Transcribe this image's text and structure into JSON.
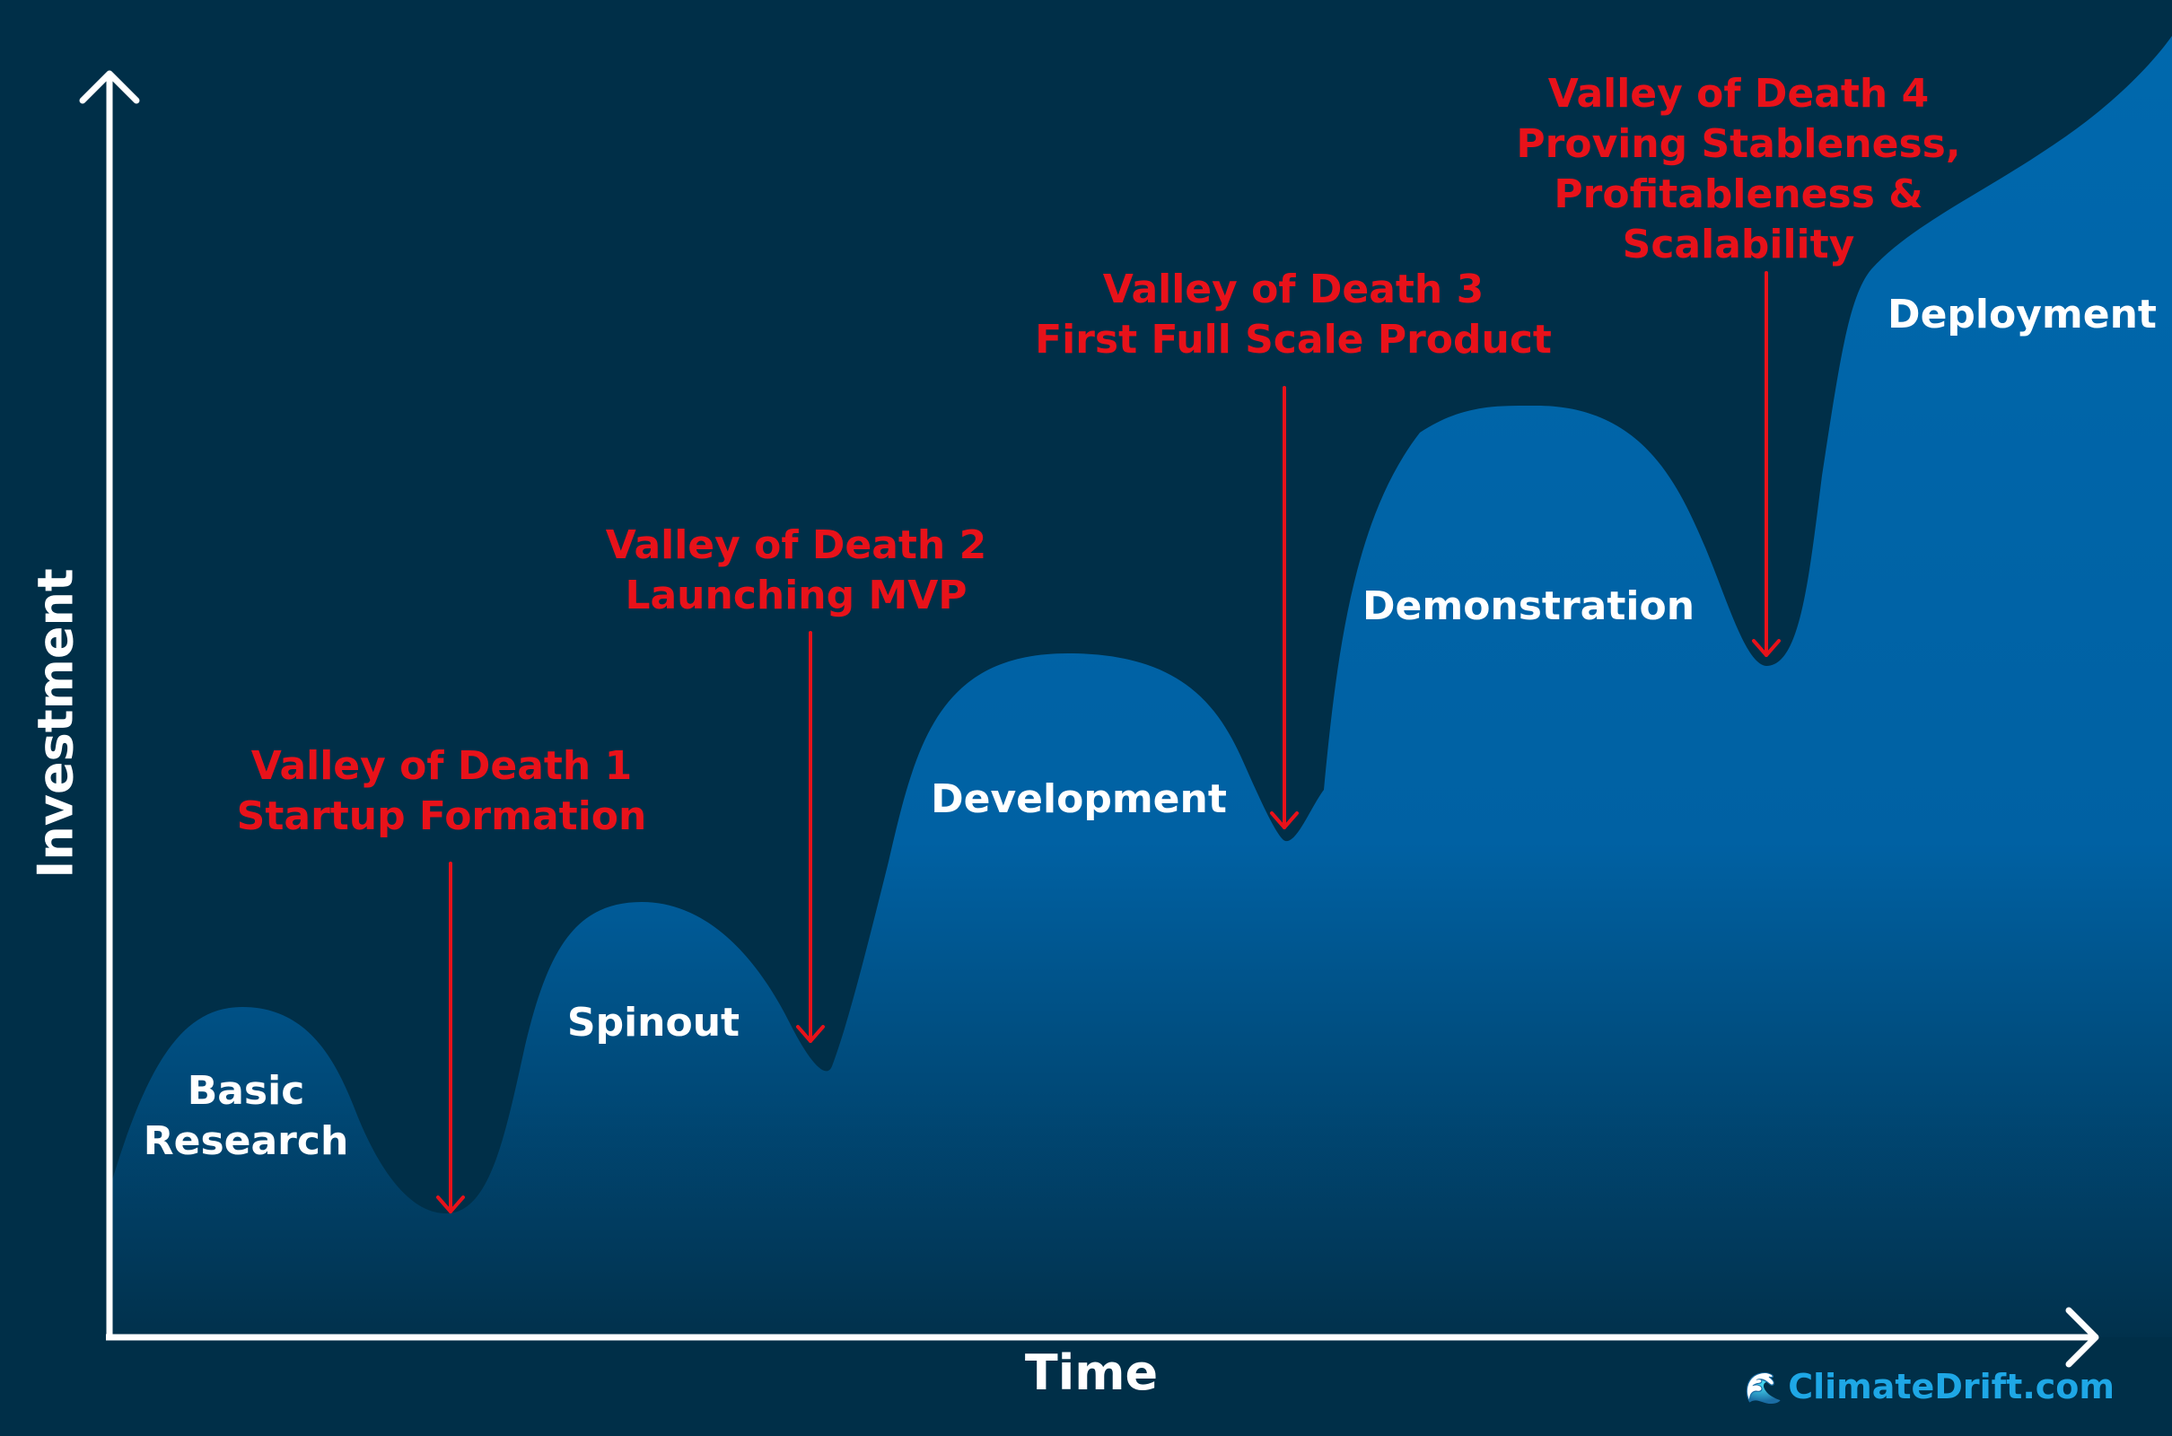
{
  "axes": {
    "y_label": "Investment",
    "x_label": "Time"
  },
  "stages": [
    {
      "id": "basic-research",
      "lines": [
        "Basic",
        "Research"
      ]
    },
    {
      "id": "spinout",
      "lines": [
        "Spinout"
      ]
    },
    {
      "id": "development",
      "lines": [
        "Development"
      ]
    },
    {
      "id": "demonstration",
      "lines": [
        "Demonstration"
      ]
    },
    {
      "id": "deployment",
      "lines": [
        "Deployment"
      ]
    }
  ],
  "valleys": [
    {
      "id": "valley-1",
      "lines": [
        "Valley of Death 1",
        "Startup Formation"
      ]
    },
    {
      "id": "valley-2",
      "lines": [
        "Valley of Death 2",
        "Launching MVP"
      ]
    },
    {
      "id": "valley-3",
      "lines": [
        "Valley of Death 3",
        "First Full Scale Product"
      ]
    },
    {
      "id": "valley-4",
      "lines": [
        "Valley of Death 4",
        "Proving Stableness,",
        "Profitableness &",
        "Scalability"
      ]
    }
  ],
  "brand": {
    "icon": "wave-icon",
    "text": "ClimateDrift.com"
  },
  "colors": {
    "background": "#002f48",
    "curve_top": "#0066aa",
    "curve_bottom": "#013049",
    "valley_text": "#e8121a",
    "stage_text": "#ffffff",
    "brand": "#1ea7e6"
  }
}
